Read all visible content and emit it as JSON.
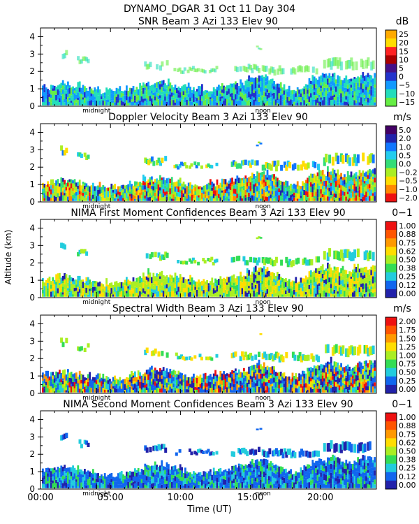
{
  "figure": {
    "title": "DYNAMO_DGAR  31 Oct 11 Day 304",
    "ylabel": "Altitude (km)",
    "xlabel": "Time (UT)",
    "x_ticks": [
      "00:00",
      "05:00",
      "10:00",
      "15:00",
      "20:00"
    ],
    "midnight_label": "midnight",
    "noon_label": "noon"
  },
  "chart_data": [
    {
      "type": "heatmap",
      "title": "SNR Beam 3 Azi 133 Elev 90",
      "unit": "dB",
      "xlim": [
        0,
        24
      ],
      "ylim": [
        0,
        4.5
      ],
      "y_ticks": [
        "0",
        "1",
        "2",
        "3",
        "4"
      ],
      "colorbar_ticks": [
        "25",
        "20",
        "15",
        "10",
        "5",
        "0",
        "−5",
        "−10",
        "−15"
      ],
      "colors": [
        "#ffaa00",
        "#ffdd00",
        "#ff2222",
        "#aa0000",
        "#441188",
        "#2233cc",
        "#1199ff",
        "#22ddbb",
        "#66ee44"
      ]
    },
    {
      "type": "heatmap",
      "title": "Doppler Velocity Beam 3 Azi 133 Elev 90",
      "unit": "m/s",
      "xlim": [
        0,
        24
      ],
      "ylim": [
        0,
        4.5
      ],
      "y_ticks": [
        "0",
        "1",
        "2",
        "3",
        "4"
      ],
      "colorbar_ticks": [
        "5.0",
        "2.0",
        "1.0",
        "0.5",
        "0.0",
        "−0.2",
        "−0.5",
        "−1.0",
        "−2.0"
      ],
      "colors": [
        "#440066",
        "#2222aa",
        "#1177ff",
        "#22ccee",
        "#33dd77",
        "#aaee22",
        "#ffdd00",
        "#ff8800",
        "#ee1111"
      ]
    },
    {
      "type": "heatmap",
      "title": "NIMA First Moment Confidences Beam 3 Azi 133 Elev 90",
      "unit": "0−1",
      "xlim": [
        0,
        24
      ],
      "ylim": [
        0,
        4.5
      ],
      "y_ticks": [
        "0",
        "1",
        "2",
        "3",
        "4"
      ],
      "colorbar_ticks": [
        "1.00",
        "0.88",
        "0.75",
        "0.62",
        "0.50",
        "0.38",
        "0.25",
        "0.12",
        "0.00"
      ],
      "colors": [
        "#ee1111",
        "#ff5500",
        "#ff9900",
        "#ffdd00",
        "#aaee22",
        "#33dd55",
        "#22ccdd",
        "#1166ee",
        "#2222aa"
      ]
    },
    {
      "type": "heatmap",
      "title": "Spectral Width Beam 3 Azi 133 Elev 90",
      "unit": "m/s",
      "xlim": [
        0,
        24
      ],
      "ylim": [
        0,
        4.5
      ],
      "y_ticks": [
        "0",
        "1",
        "2",
        "3",
        "4"
      ],
      "colorbar_ticks": [
        "2.00",
        "1.75",
        "1.50",
        "1.25",
        "1.00",
        "0.75",
        "0.50",
        "0.25",
        "0.00"
      ],
      "colors": [
        "#ee1111",
        "#ff5500",
        "#ff9900",
        "#ffdd00",
        "#aaee22",
        "#33dd55",
        "#22ccdd",
        "#1166ee",
        "#2222aa"
      ]
    },
    {
      "type": "heatmap",
      "title": "NIMA Second Moment Confidences Beam 3 Azi 133 Elev 90",
      "unit": "0−1",
      "xlim": [
        0,
        24
      ],
      "ylim": [
        0,
        4.5
      ],
      "y_ticks": [
        "0",
        "1",
        "2",
        "3",
        "4"
      ],
      "colorbar_ticks": [
        "1.00",
        "0.88",
        "0.75",
        "0.62",
        "0.50",
        "0.38",
        "0.25",
        "0.12",
        "0.00"
      ],
      "colors": [
        "#ee1111",
        "#ff5500",
        "#ff9900",
        "#ffdd00",
        "#aaee22",
        "#33dd55",
        "#22ccdd",
        "#1166ee",
        "#2222aa"
      ]
    }
  ]
}
